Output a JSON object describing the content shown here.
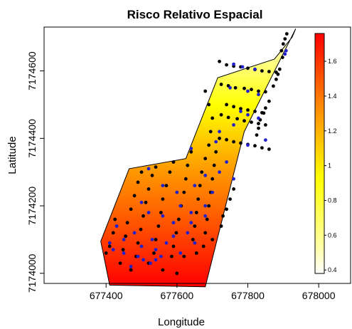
{
  "chart_data": {
    "type": "scatter",
    "title": "Risco Relativo Espacial",
    "xlabel": "Longitude",
    "ylabel": "Latitude",
    "xlim": [
      677225,
      678090
    ],
    "ylim": [
      7173970,
      7174730
    ],
    "x_ticks": [
      677400,
      677600,
      677800,
      678000
    ],
    "y_ticks": [
      7174000,
      7174200,
      7174400,
      7174600
    ],
    "x_tick_labels": [
      "677400",
      "677600",
      "677800",
      "678000"
    ],
    "y_tick_labels": [
      "7174000",
      "7174200",
      "7174400",
      "7174600"
    ],
    "surface": {
      "description_colors": {
        "low": "#ffffff",
        "mid": "#ffff00",
        "high": "#ff0000"
      },
      "legend": {
        "range": [
          0.38,
          1.76
        ],
        "ticks": [
          0.4,
          0.6,
          0.8,
          1,
          1.2,
          1.4,
          1.6
        ],
        "tick_labels": [
          "0.4",
          "0.6",
          "0.8",
          "1",
          "1.2",
          "1.4",
          "1.6"
        ]
      }
    },
    "region_polygon": [
      [
        677935,
        7174725
      ],
      [
        677790,
        7174420
      ],
      [
        677680,
        7173960
      ],
      [
        677410,
        7173965
      ],
      [
        677385,
        7174095
      ],
      [
        677465,
        7174310
      ],
      [
        677625,
        7174340
      ],
      [
        677715,
        7174580
      ],
      [
        677875,
        7174635
      ],
      [
        677925,
        7174700
      ]
    ],
    "series": [
      {
        "color": "#000000",
        "points": [
          [
            677910,
            7174710
          ],
          [
            677905,
            7174695
          ],
          [
            677900,
            7174680
          ],
          [
            677895,
            7174660
          ],
          [
            677898,
            7174640
          ],
          [
            677890,
            7174605
          ],
          [
            677885,
            7174590
          ],
          [
            677880,
            7174575
          ],
          [
            677872,
            7174555
          ],
          [
            677860,
            7174510
          ],
          [
            677850,
            7174490
          ],
          [
            677845,
            7174475
          ],
          [
            677835,
            7174455
          ],
          [
            677830,
            7174430
          ],
          [
            677825,
            7174410
          ],
          [
            677720,
            7174628
          ],
          [
            677740,
            7174618
          ],
          [
            677760,
            7174614
          ],
          [
            677780,
            7174612
          ],
          [
            677800,
            7174608
          ],
          [
            677820,
            7174604
          ],
          [
            677840,
            7174600
          ],
          [
            677860,
            7174598
          ],
          [
            677880,
            7174596
          ],
          [
            677725,
            7174560
          ],
          [
            677745,
            7174556
          ],
          [
            677765,
            7174550
          ],
          [
            677790,
            7174548
          ],
          [
            677810,
            7174545
          ],
          [
            677830,
            7174540
          ],
          [
            677850,
            7174538
          ],
          [
            677740,
            7174500
          ],
          [
            677760,
            7174494
          ],
          [
            677780,
            7174488
          ],
          [
            677800,
            7174484
          ],
          [
            677820,
            7174480
          ],
          [
            677840,
            7174476
          ],
          [
            677725,
            7174470
          ],
          [
            677745,
            7174462
          ],
          [
            677770,
            7174458
          ],
          [
            677790,
            7174452
          ],
          [
            677810,
            7174448
          ],
          [
            677830,
            7174444
          ],
          [
            677850,
            7174440
          ],
          [
            677720,
            7174400
          ],
          [
            677740,
            7174396
          ],
          [
            677760,
            7174390
          ],
          [
            677780,
            7174386
          ],
          [
            677800,
            7174382
          ],
          [
            677820,
            7174378
          ],
          [
            677840,
            7174372
          ],
          [
            677860,
            7174368
          ],
          [
            677680,
            7174540
          ],
          [
            677690,
            7174500
          ],
          [
            677700,
            7174460
          ],
          [
            677695,
            7174420
          ],
          [
            677690,
            7174380
          ],
          [
            677680,
            7174340
          ],
          [
            677670,
            7174300
          ],
          [
            677665,
            7174260
          ],
          [
            677660,
            7174220
          ],
          [
            677655,
            7174180
          ],
          [
            677650,
            7174140
          ],
          [
            677645,
            7174100
          ],
          [
            677710,
            7174360
          ],
          [
            677705,
            7174320
          ],
          [
            677700,
            7174280
          ],
          [
            677695,
            7174240
          ],
          [
            677690,
            7174200
          ],
          [
            677685,
            7174160
          ],
          [
            677680,
            7174120
          ],
          [
            677675,
            7174080
          ],
          [
            677640,
            7174360
          ],
          [
            677630,
            7174320
          ],
          [
            677625,
            7174280
          ],
          [
            677620,
            7174240
          ],
          [
            677612,
            7174200
          ],
          [
            677605,
            7174160
          ],
          [
            677598,
            7174120
          ],
          [
            677590,
            7174080
          ],
          [
            677585,
            7174050
          ],
          [
            677590,
            7174330
          ],
          [
            677580,
            7174300
          ],
          [
            677570,
            7174260
          ],
          [
            677560,
            7174220
          ],
          [
            677555,
            7174180
          ],
          [
            677548,
            7174140
          ],
          [
            677540,
            7174100
          ],
          [
            677535,
            7174060
          ],
          [
            677540,
            7174315
          ],
          [
            677530,
            7174290
          ],
          [
            677520,
            7174250
          ],
          [
            677512,
            7174210
          ],
          [
            677505,
            7174170
          ],
          [
            677498,
            7174130
          ],
          [
            677490,
            7174090
          ],
          [
            677485,
            7174050
          ],
          [
            677500,
            7174300
          ],
          [
            677490,
            7174270
          ],
          [
            677480,
            7174230
          ],
          [
            677470,
            7174190
          ],
          [
            677460,
            7174150
          ],
          [
            677455,
            7174110
          ],
          [
            677448,
            7174070
          ],
          [
            677440,
            7174030
          ],
          [
            677425,
            7174160
          ],
          [
            677420,
            7174120
          ],
          [
            677410,
            7174080
          ],
          [
            677400,
            7174060
          ],
          [
            677760,
            7174250
          ],
          [
            677750,
            7174220
          ],
          [
            677740,
            7174190
          ],
          [
            677730,
            7174170
          ],
          [
            677520,
            7174030
          ],
          [
            677560,
            7174010
          ],
          [
            677600,
            7174000
          ],
          [
            677470,
            7174010
          ],
          [
            677620,
            7174050
          ],
          [
            677655,
            7174060
          ],
          [
            677700,
            7174100
          ],
          [
            677725,
            7174140
          ]
        ]
      },
      {
        "color": "#2222cc",
        "points": [
          [
            677905,
            7174650
          ],
          [
            677908,
            7174660
          ],
          [
            677760,
            7174620
          ],
          [
            677785,
            7174612
          ],
          [
            677820,
            7174605
          ],
          [
            677750,
            7174550
          ],
          [
            677800,
            7174540
          ],
          [
            677830,
            7174530
          ],
          [
            677780,
            7174480
          ],
          [
            677830,
            7174460
          ],
          [
            677760,
            7174440
          ],
          [
            677710,
            7174390
          ],
          [
            677800,
            7174380
          ],
          [
            677850,
            7174395
          ],
          [
            677640,
            7174370
          ],
          [
            677680,
            7174290
          ],
          [
            677720,
            7174300
          ],
          [
            677760,
            7174280
          ],
          [
            677520,
            7174310
          ],
          [
            677560,
            7174260
          ],
          [
            677600,
            7174240
          ],
          [
            677650,
            7174260
          ],
          [
            677610,
            7174200
          ],
          [
            677640,
            7174180
          ],
          [
            677680,
            7174170
          ],
          [
            677500,
            7174210
          ],
          [
            677520,
            7174180
          ],
          [
            677560,
            7174170
          ],
          [
            677590,
            7174150
          ],
          [
            677430,
            7174140
          ],
          [
            677450,
            7174100
          ],
          [
            677480,
            7174120
          ],
          [
            677530,
            7174100
          ],
          [
            677570,
            7174090
          ],
          [
            677610,
            7174060
          ],
          [
            677650,
            7174090
          ],
          [
            677410,
            7174090
          ],
          [
            677420,
            7174070
          ],
          [
            677450,
            7174060
          ],
          [
            677490,
            7174050
          ],
          [
            677505,
            7174040
          ],
          [
            677525,
            7174030
          ],
          [
            677540,
            7174040
          ],
          [
            677555,
            7174050
          ],
          [
            677470,
            7174020
          ],
          [
            677500,
            7174080
          ],
          [
            677540,
            7174070
          ],
          [
            677590,
            7174110
          ],
          [
            677630,
            7174120
          ],
          [
            677680,
            7174200
          ],
          [
            677700,
            7174240
          ],
          [
            677740,
            7174330
          ],
          [
            677800,
            7174470
          ],
          [
            677720,
            7174420
          ],
          [
            677640,
            7174150
          ]
        ]
      }
    ]
  }
}
